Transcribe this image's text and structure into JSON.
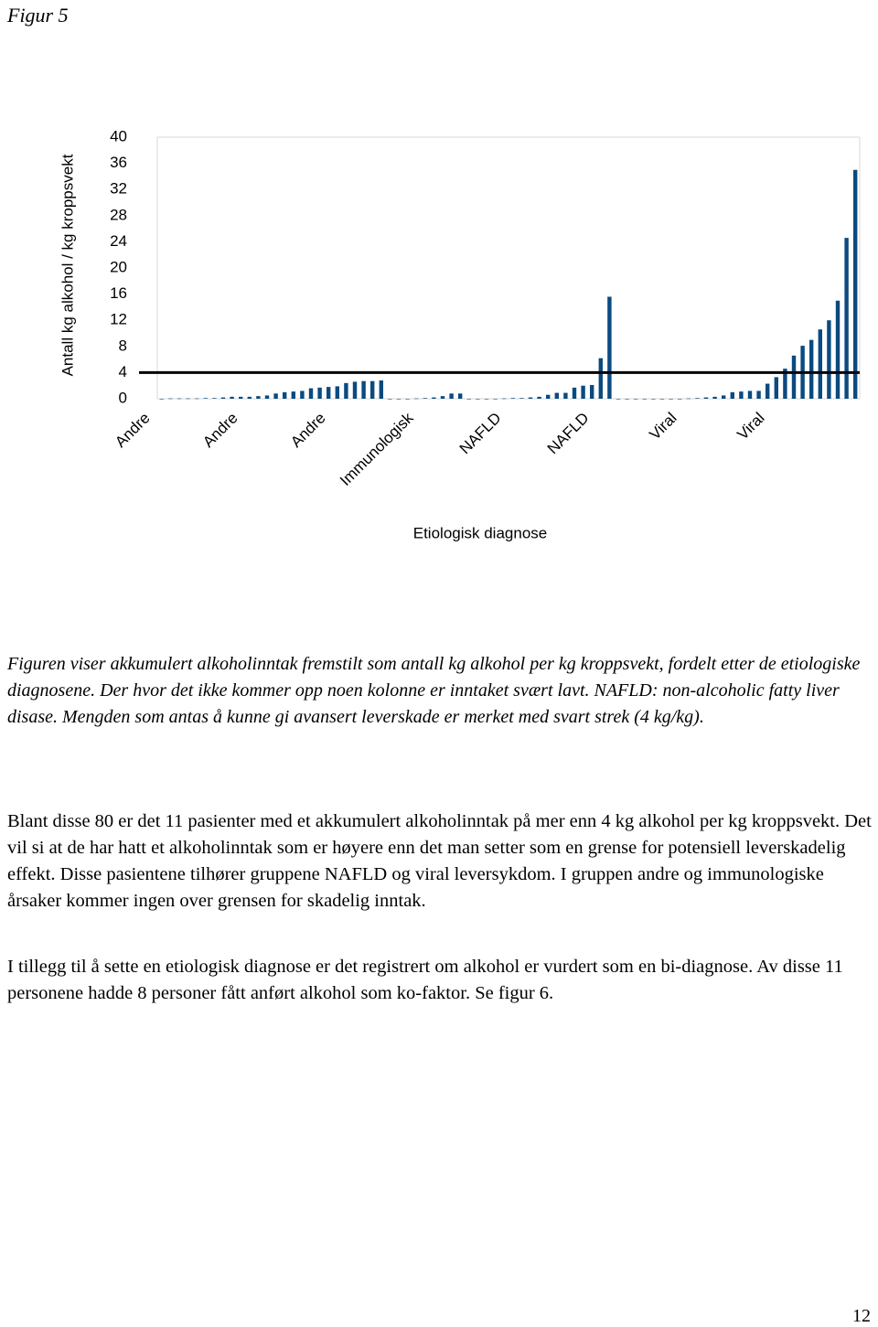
{
  "document": {
    "figure_label": "Figur 5",
    "caption": "Figuren viser akkumulert alkoholinntak fremstilt som antall kg alkohol per kg kroppsvekt, fordelt etter de etiologiske diagnosene. Der hvor det ikke kommer opp noen kolonne er inntaket svært lavt. NAFLD: non-alcoholic fatty liver disase. Mengden som antas å kunne gi avansert leverskade er merket med svart strek (4 kg/kg).",
    "paragraphs": [
      "Blant disse 80 er det 11 pasienter med et akkumulert alkoholinntak på mer enn 4 kg alkohol per kg kroppsvekt. Det vil si at de har hatt et alkoholinntak som er høyere enn det man setter som en grense for potensiell leverskadelig effekt. Disse pasientene tilhører gruppene NAFLD og viral leversykdom. I gruppen andre og immunologiske årsaker kommer ingen over grensen for skadelig inntak.",
      "I tillegg til å sette en etiologisk diagnose er det registrert om alkohol er vurdert som en bi-diagnose. Av disse 11 personene hadde 8 personer fått anført alkohol som ko-faktor. Se figur 6."
    ],
    "page_number": "12"
  },
  "chart_data": {
    "type": "bar",
    "y_label": "Antall kg alkohol / kg kroppsvekt",
    "x_label": "Etiologisk diagnose",
    "categories": [
      "Andre",
      null,
      null,
      null,
      null,
      null,
      null,
      null,
      null,
      null,
      "Andre",
      null,
      null,
      null,
      null,
      null,
      null,
      null,
      null,
      null,
      "Andre",
      null,
      null,
      null,
      null,
      null,
      null,
      null,
      null,
      null,
      "Immunologisk",
      null,
      null,
      null,
      null,
      null,
      null,
      null,
      null,
      null,
      "NAFLD",
      null,
      null,
      null,
      null,
      null,
      null,
      null,
      null,
      null,
      "NAFLD",
      null,
      null,
      null,
      null,
      null,
      null,
      null,
      null,
      null,
      "Viral",
      null,
      null,
      null,
      null,
      null,
      null,
      null,
      null,
      null,
      "Viral",
      null,
      null,
      null,
      null,
      null,
      null,
      null,
      null,
      null
    ],
    "values": [
      0,
      0.05,
      0.05,
      0.05,
      0.05,
      0.1,
      0.1,
      0.2,
      0.3,
      0.3,
      0.3,
      0.4,
      0.5,
      0.8,
      1.0,
      1.1,
      1.2,
      1.6,
      1.7,
      1.8,
      1.9,
      2.4,
      2.6,
      2.7,
      2.7,
      2.8,
      0,
      0,
      0,
      0.05,
      0.1,
      0.2,
      0.4,
      0.8,
      0.8,
      0,
      0,
      0,
      0,
      0.05,
      0.1,
      0.1,
      0.2,
      0.3,
      0.6,
      0.9,
      0.9,
      1.7,
      2.0,
      2.1,
      6.2,
      15.6,
      0,
      0,
      0,
      0,
      0,
      0,
      0,
      0,
      0.05,
      0.1,
      0.2,
      0.3,
      0.5,
      1.0,
      1.1,
      1.2,
      1.2,
      2.3,
      3.3,
      4.6,
      6.6,
      8.1,
      9.0,
      10.6,
      12.0,
      15.0,
      24.6,
      35
    ],
    "color": "#0a4a80",
    "threshold": 4,
    "ylim": [
      0,
      40
    ],
    "yticks": [
      0,
      4,
      8,
      12,
      16,
      20,
      24,
      28,
      32,
      36,
      40
    ],
    "grid": false
  }
}
